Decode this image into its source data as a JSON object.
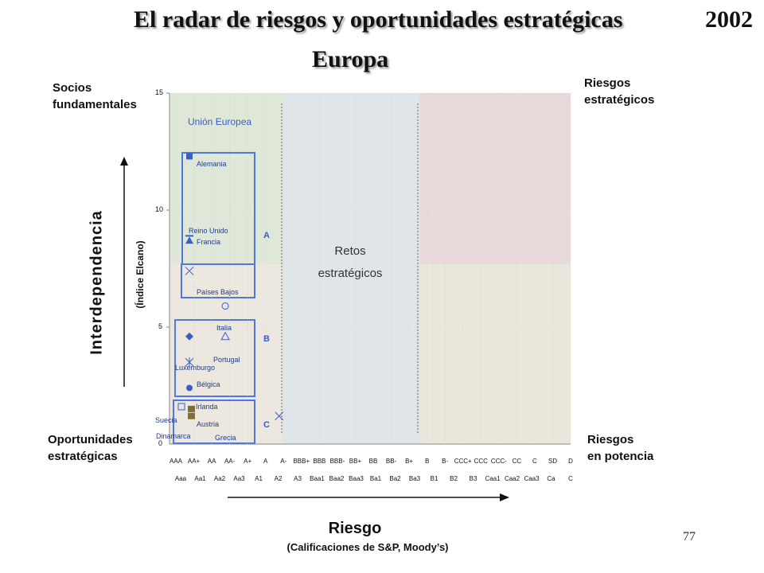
{
  "header": {
    "title": "El radar de riesgos y oportunidades estratégicas",
    "year": "2002",
    "subtitle": "Europa"
  },
  "quadrants": {
    "top_left": "Socios\nfundamentales",
    "top_right": "Riesgos\nestratégicos",
    "bottom_left": "Oportunidades\nestratégicas",
    "bottom_right": "Riesgos\nen potencia",
    "middle": "Retos\nestratégicos"
  },
  "page_number": "77",
  "colors": {
    "socios": "#dfe7d8",
    "oportunidades": "#ece7df",
    "retos": "#dfe5e8",
    "riesgos_estrategicos": "#e8dadb",
    "riesgos_potencia": "#e9e7dc",
    "group_box": "#4f78d8",
    "marker": "#3a5ec4"
  },
  "chart_data": {
    "type": "scatter",
    "title": "El radar de riesgos y oportunidades estratégicas",
    "xlabel": "Riesgo",
    "xlabel_sub": "(Calificaciones de S&P, Moody’s)",
    "ylabel": "Interdependencia",
    "ylabel_sub": "(Índice Elcano)",
    "ylim": [
      0,
      15
    ],
    "yticks": [
      "0",
      "5",
      "10",
      "15"
    ],
    "x_ticks_sp": [
      "AAA",
      "AA+",
      "AA",
      "AA-",
      "A+",
      "A",
      "A-",
      "BBB+",
      "BBB",
      "BBB-",
      "BB+",
      "BB",
      "BB-",
      "B+",
      "B",
      "B-",
      "CCC+",
      "CCC",
      "CCC-",
      "CC",
      "C",
      "SD",
      "D"
    ],
    "x_ticks_moodys": [
      "Aaa",
      "Aa1",
      "Aa2",
      "Aa3",
      "A1",
      "A2",
      "A3",
      "Baa1",
      "Baa2",
      "Baa3",
      "Ba1",
      "Ba2",
      "Ba3",
      "B1",
      "B2",
      "B3",
      "Caa1",
      "Caa2",
      "Caa3",
      "Ca",
      "C"
    ],
    "region_label": "Unión Europea",
    "groups": [
      "A",
      "B",
      "C"
    ],
    "series": [
      {
        "name": "Alemania",
        "x": "AAA",
        "y": 12.3,
        "marker": "square"
      },
      {
        "name": "Reino Unido",
        "x": "AAA",
        "y": 8.9,
        "marker": "dash"
      },
      {
        "name": "Francia",
        "x": "AAA",
        "y": 8.7,
        "marker": "triangle-filled"
      },
      {
        "name": "Países Bajos",
        "x": "AAA",
        "y": 7.4,
        "marker": "x"
      },
      {
        "name": "Italia",
        "x": "AA",
        "y": 5.9,
        "marker": "circle-open"
      },
      {
        "name": "Luxemburgo",
        "x": "AAA",
        "y": 4.6,
        "marker": "diamond"
      },
      {
        "name": "Portugal",
        "x": "AA",
        "y": 4.6,
        "marker": "triangle-open"
      },
      {
        "name": "Bélgica",
        "x": "AAA",
        "y": 3.5,
        "marker": "star"
      },
      {
        "name": "Irlanda",
        "x": "AAA",
        "y": 2.4,
        "marker": "circle-filled"
      },
      {
        "name": "Suecia",
        "x": "AAA",
        "y": 1.6,
        "marker": "square-open"
      },
      {
        "name": "Austria",
        "x": "AAA",
        "y": 1.5,
        "marker": "square-olive"
      },
      {
        "name": "Dinamarca",
        "x": "AAA",
        "y": 1.2,
        "marker": "square-olive"
      },
      {
        "name": "Grecia",
        "x": "A",
        "y": 1.2,
        "marker": "x"
      }
    ],
    "grid": true
  }
}
